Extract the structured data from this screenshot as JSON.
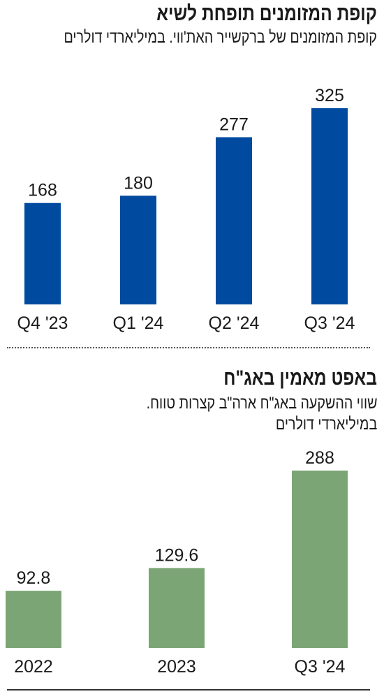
{
  "charts": [
    {
      "headline": "קופת המזומנים תופחת לשיא",
      "subtitle_lines": [
        "קופת המזומנים של ברקשייר האת'ווי. במיליארדי דולרים"
      ],
      "bar_color": "#004A9F",
      "chart_data": {
        "type": "bar",
        "categories": [
          "Q4 '23",
          "Q1 '24",
          "Q2 '24",
          "Q3 '24"
        ],
        "values": [
          168,
          180,
          277,
          325
        ],
        "title": "קופת המזומנים תופחת לשיא",
        "subtitle": "קופת המזומנים של ברקשייר האת'ווי. במיליארדי דולרים",
        "xlabel": "",
        "ylabel": "",
        "ylim": [
          0,
          325
        ],
        "grid": false
      }
    },
    {
      "headline": "באפט מאמין באג\"ח",
      "subtitle_lines": [
        "שווי ההשקעה באג\"ח ארה\"ב קצרות טווח.",
        "במיליארדי דולרים"
      ],
      "bar_color": "#7BA574",
      "chart_data": {
        "type": "bar",
        "categories": [
          "2022",
          "2023",
          "Q3 '24"
        ],
        "values": [
          92.8,
          129.6,
          288
        ],
        "title": "באפט מאמין באג\"ח",
        "subtitle": "שווי ההשקעה באג\"ח ארה\"ב קצרות טווח. במיליארדי דולרים",
        "xlabel": "",
        "ylabel": "",
        "ylim": [
          0,
          288
        ],
        "grid": false
      }
    }
  ]
}
